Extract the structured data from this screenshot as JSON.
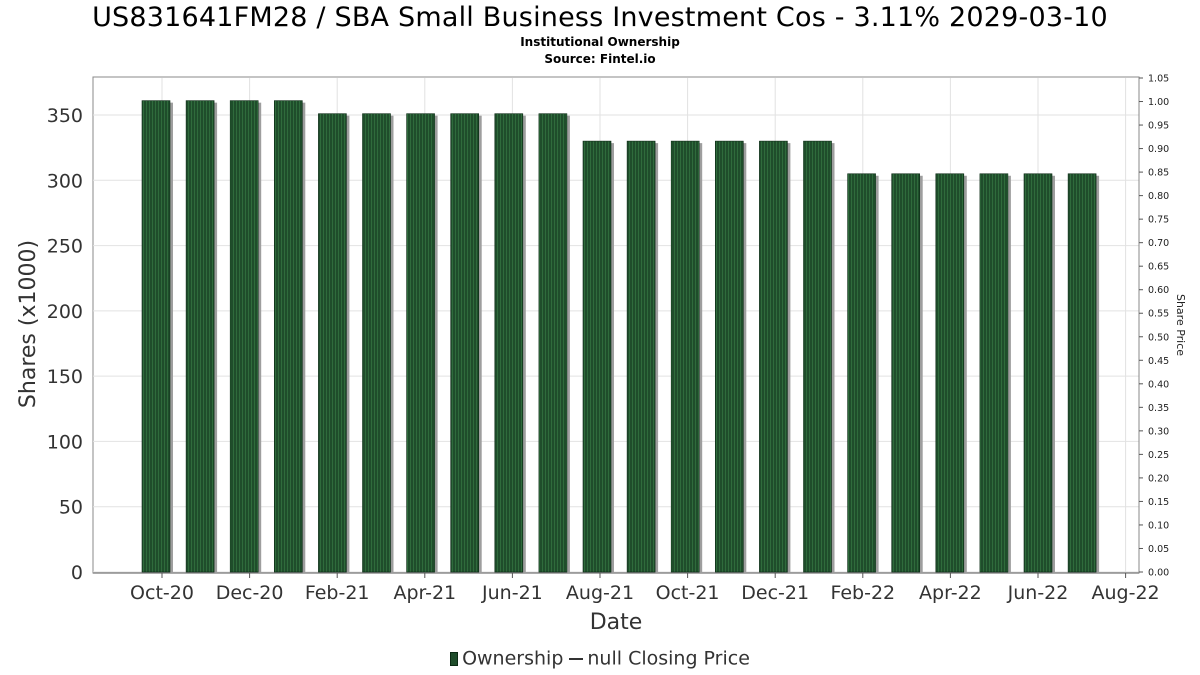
{
  "title": "US831641FM28 / SBA Small Business Investment Cos - 3.11% 2029-03-10",
  "subtitle1": "Institutional Ownership",
  "subtitle2": "Source: Fintel.io",
  "legend": {
    "ownership": "Ownership",
    "price": "null Closing Price"
  },
  "colors": {
    "bar_fill": "#1f4d2b",
    "bar_stripe": "#2f6b3c",
    "bar_shadow": "#9e9e9e",
    "grid": "#e2e2e2",
    "plot_border": "#888888"
  },
  "chart_data": {
    "type": "bar",
    "xlabel": "Date",
    "ylabel": "Shares (x1000)",
    "y2label": "Share Price",
    "ylim": [
      0,
      370
    ],
    "y_ticks": [
      0,
      50,
      100,
      150,
      200,
      250,
      300,
      350
    ],
    "y2lim": [
      0,
      1.05
    ],
    "y2_ticks": [
      "0.00",
      "0.05",
      "0.10",
      "0.15",
      "0.20",
      "0.25",
      "0.30",
      "0.35",
      "0.40",
      "0.45",
      "0.50",
      "0.55",
      "0.60",
      "0.65",
      "0.70",
      "0.75",
      "0.80",
      "0.85",
      "0.90",
      "0.95",
      "1.00",
      "1.05"
    ],
    "x_ticks": [
      "Oct-20",
      "Dec-20",
      "Feb-21",
      "Apr-21",
      "Jun-21",
      "Aug-21",
      "Oct-21",
      "Dec-21",
      "Feb-22",
      "Apr-22",
      "Jun-22",
      "Aug-22"
    ],
    "values": [
      361,
      361,
      361,
      361,
      351,
      351,
      351,
      351,
      351,
      351,
      330,
      330,
      330,
      330,
      330,
      330,
      305,
      305,
      305,
      305,
      305,
      305
    ],
    "grid": true
  }
}
